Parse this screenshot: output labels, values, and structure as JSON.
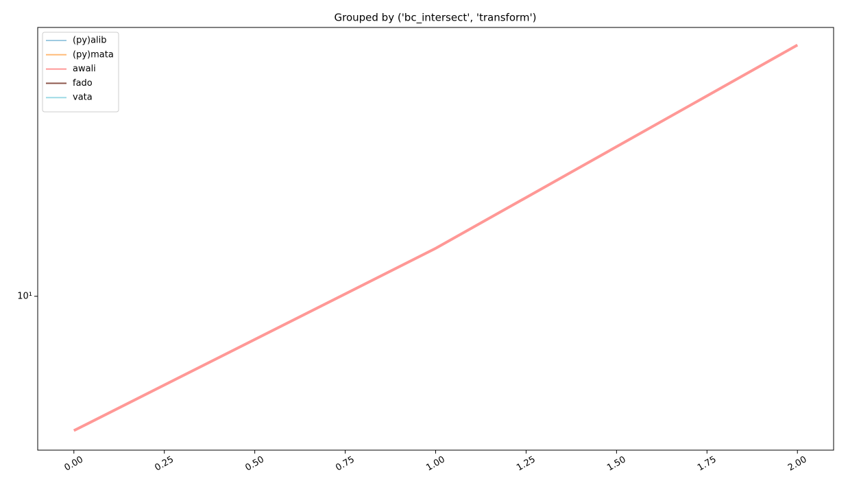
{
  "chart_data": {
    "type": "line",
    "title": "Grouped by ('bc_intersect', 'transform')",
    "x": [
      0,
      1,
      2
    ],
    "series": [
      {
        "name": "(py)alib",
        "color": "#9ecae1",
        "values": [
          null,
          null,
          null
        ]
      },
      {
        "name": "(py)mata",
        "color": "#ffbb78",
        "values": [
          null,
          null,
          null
        ]
      },
      {
        "name": "awali",
        "color": "#ff9896",
        "values": [
          6,
          12,
          26
        ]
      },
      {
        "name": "fado",
        "color": "#8c564b",
        "values": [
          null,
          null,
          null
        ]
      },
      {
        "name": "vata",
        "color": "#9edae5",
        "values": [
          null,
          null,
          null
        ]
      }
    ],
    "xlim": [
      -0.1,
      2.1
    ],
    "xticks": [
      {
        "value": 0,
        "label": "0.00"
      },
      {
        "value": 0.25,
        "label": "0.25"
      },
      {
        "value": 0.5,
        "label": "0.50"
      },
      {
        "value": 0.75,
        "label": "0.75"
      },
      {
        "value": 1,
        "label": "1.00"
      },
      {
        "value": 1.25,
        "label": "1.25"
      },
      {
        "value": 1.5,
        "label": "1.50"
      },
      {
        "value": 1.75,
        "label": "1.75"
      },
      {
        "value": 2,
        "label": "2.00"
      }
    ],
    "ylim": [
      5.57,
      27.8
    ],
    "yticks": [
      {
        "value": 10,
        "label": "10¹"
      }
    ],
    "log_y": true,
    "legend": "upper left"
  }
}
